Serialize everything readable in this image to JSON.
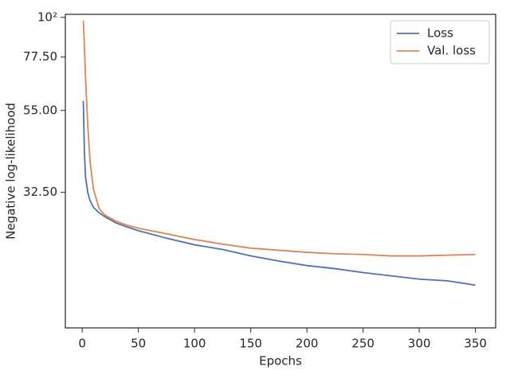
{
  "chart_data": {
    "type": "line",
    "xlabel": "Epochs",
    "ylabel": "Negative log-likelihood",
    "x": [
      1,
      2,
      3,
      5,
      7,
      10,
      15,
      20,
      30,
      40,
      50,
      75,
      100,
      125,
      150,
      175,
      200,
      225,
      250,
      275,
      300,
      325,
      350
    ],
    "series": [
      {
        "name": "Loss",
        "color": "#4c72b0",
        "values": [
          58.5,
          41.7,
          35.8,
          32.4,
          30.8,
          29.5,
          28.5,
          27.8,
          26.7,
          26.0,
          25.4,
          24.2,
          23.2,
          22.5,
          21.6,
          20.9,
          20.3,
          19.9,
          19.4,
          19.0,
          18.6,
          18.4,
          17.9
        ]
      },
      {
        "name": "Val. loss",
        "color": "#dd8452",
        "values": [
          98,
          82.5,
          67.5,
          49.8,
          39.6,
          33.2,
          29.3,
          28.1,
          27.0,
          26.3,
          25.8,
          24.9,
          24.0,
          23.3,
          22.7,
          22.4,
          22.1,
          21.9,
          21.8,
          21.6,
          21.6,
          21.7,
          21.8
        ]
      }
    ],
    "xlim": [
      -15,
      368
    ],
    "xticks": [
      0,
      50,
      100,
      150,
      200,
      250,
      300,
      350
    ],
    "ylim": [
      13.6,
      102
    ],
    "ylog": true,
    "yticks": [
      {
        "value": 32.5,
        "label": "32.50"
      },
      {
        "value": 55,
        "label": "55.00"
      },
      {
        "value": 77.5,
        "label": "77.50"
      },
      {
        "value": 100,
        "label": "10²"
      }
    ],
    "grid": false,
    "legend": "upper right"
  }
}
